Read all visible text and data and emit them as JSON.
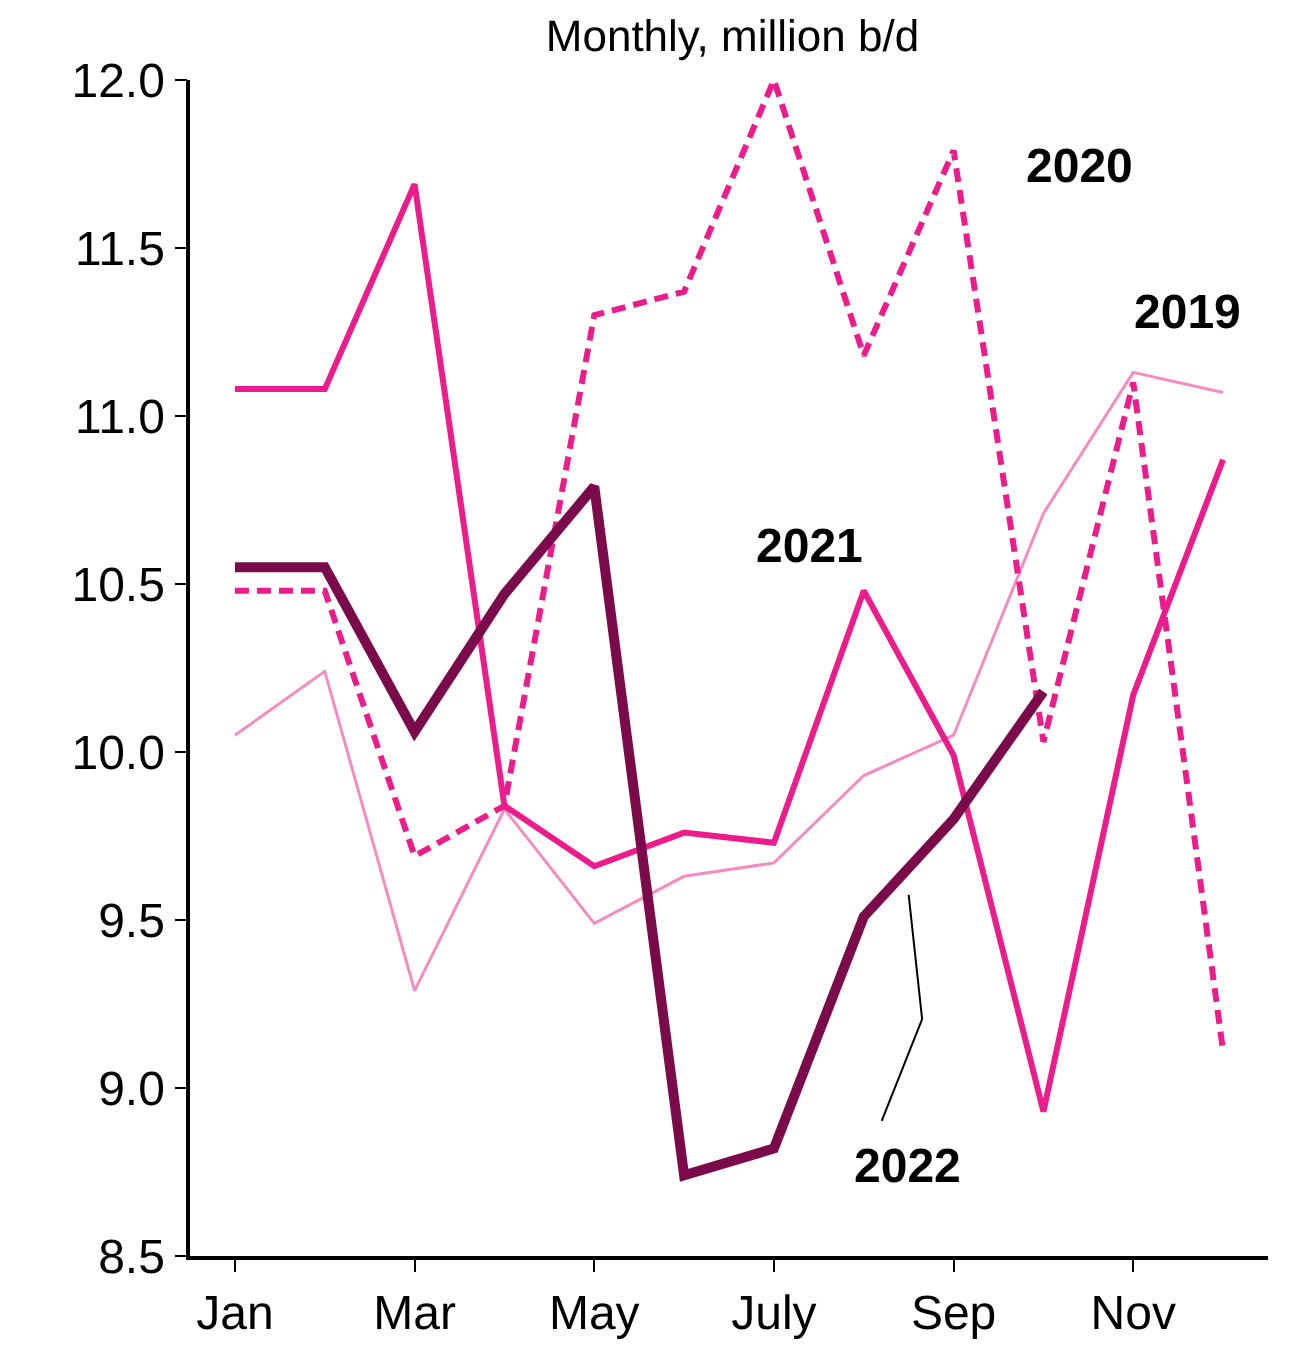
{
  "chart_data": {
    "type": "line",
    "title": "Monthly, million b/d",
    "categories": [
      "Jan",
      null,
      "Mar",
      null,
      "May",
      null,
      "July",
      null,
      "Sep",
      null,
      "Nov",
      null
    ],
    "series": [
      {
        "name": "2019",
        "color": "#f58cc0",
        "values": [
          10.05,
          10.24,
          9.29,
          9.83,
          9.49,
          9.63,
          9.67,
          9.93,
          10.05,
          10.71,
          11.13,
          11.07
        ]
      },
      {
        "name": "2020",
        "color": "#ec1c8c",
        "line_style": "dashed",
        "values": [
          10.48,
          10.48,
          9.69,
          9.84,
          11.3,
          11.37,
          12.0,
          11.18,
          11.79,
          10.03,
          11.1,
          9.11
        ]
      },
      {
        "name": "2021",
        "color": "#ec1c8c",
        "values": [
          11.08,
          11.08,
          11.69,
          9.84,
          9.66,
          9.76,
          9.73,
          10.48,
          9.99,
          8.93,
          10.17,
          10.87
        ]
      },
      {
        "name": "2022",
        "color": "#7a0a4a",
        "values": [
          10.55,
          10.55,
          10.06,
          10.47,
          10.79,
          8.74,
          8.82,
          9.51,
          9.8,
          10.18,
          null,
          null
        ]
      }
    ],
    "ylim": [
      8.5,
      12.0
    ],
    "yticks": [
      {
        "value": 8.5,
        "label": "8.5"
      },
      {
        "value": 9,
        "label": "9.0"
      },
      {
        "value": 9.5,
        "label": "9.5"
      },
      {
        "value": 10,
        "label": "10.0"
      },
      {
        "value": 10.5,
        "label": "10.5"
      },
      {
        "value": 11,
        "label": "11.0"
      },
      {
        "value": 11.5,
        "label": "11.5"
      },
      {
        "value": 12,
        "label": "12.0"
      }
    ],
    "grid": false,
    "legend": false,
    "marker": "none",
    "line_style": "solid"
  }
}
